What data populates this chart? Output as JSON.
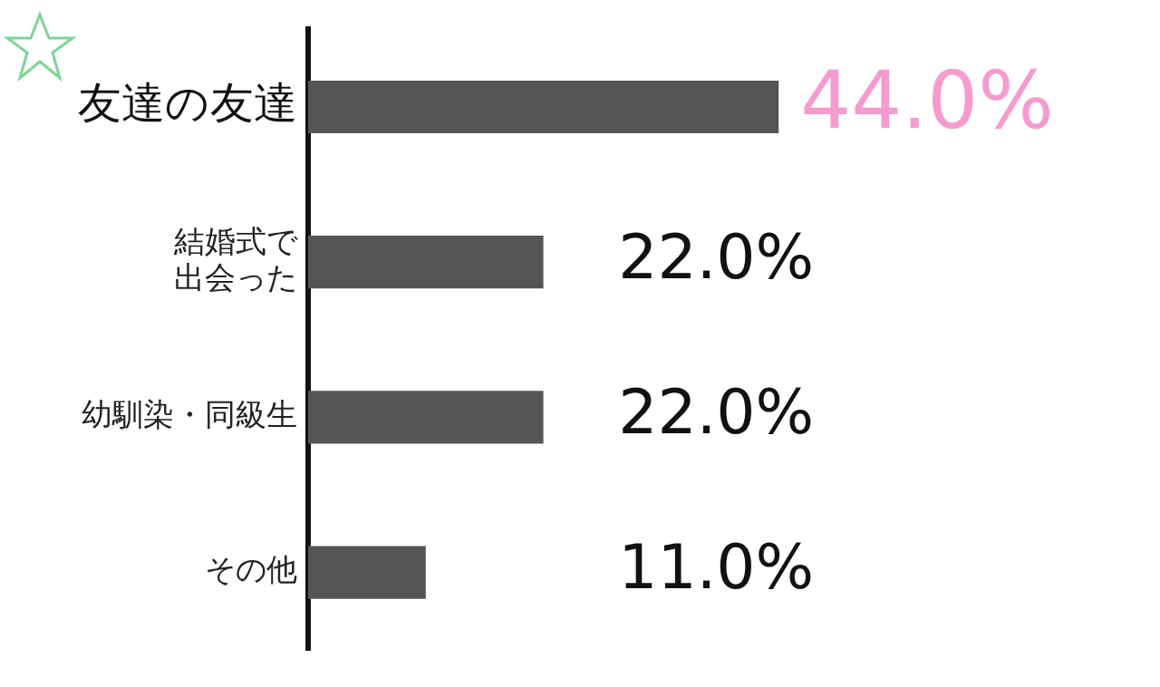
{
  "chart_data": {
    "type": "bar",
    "orientation": "horizontal",
    "categories": [
      "友達の友達",
      "結婚式で出会った",
      "幼馴染・同級生",
      "その他"
    ],
    "values": [
      44,
      22,
      22,
      11
    ],
    "color": "#555555",
    "value_labels": [
      "44.0%",
      "22.0%",
      "22.0%",
      "11.0%"
    ],
    "grid": false,
    "legend": false,
    "tick_labels": "y"
  }
}
